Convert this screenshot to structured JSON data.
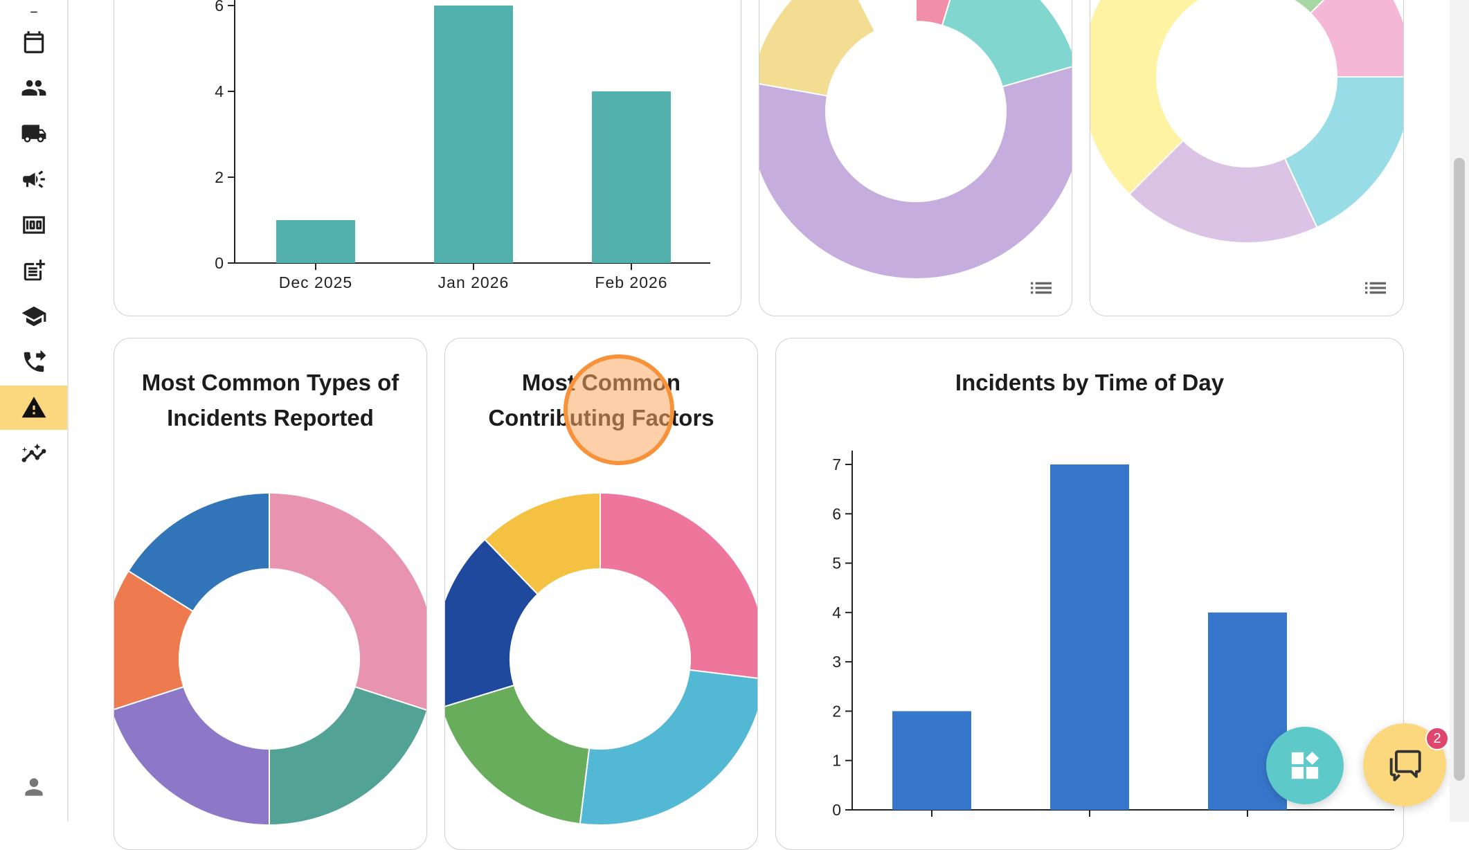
{
  "sidebar": {
    "items": [
      {
        "icon": "calendar-icon"
      },
      {
        "icon": "people-icon"
      },
      {
        "icon": "truck-icon"
      },
      {
        "icon": "megaphone-icon"
      },
      {
        "icon": "money-icon"
      },
      {
        "icon": "note-add-icon"
      },
      {
        "icon": "graduation-cap-icon"
      },
      {
        "icon": "phone-forward-icon"
      },
      {
        "icon": "warning-icon",
        "active": true
      },
      {
        "icon": "insights-icon"
      }
    ],
    "footer_icon": "user-icon",
    "active_color": "#fbd77e"
  },
  "cards": {
    "incidents_by_month": {
      "chart_data": {
        "type": "bar",
        "categories": [
          "Dec 2025",
          "Jan 2026",
          "Feb 2026"
        ],
        "values": [
          1,
          6,
          4
        ],
        "yticks": [
          0,
          2,
          4,
          6
        ],
        "ylim": [
          0,
          6
        ],
        "color": "#52b1ad"
      }
    },
    "donut_top_middle": {
      "chart_data": {
        "type": "pie",
        "donut": true,
        "slices": [
          {
            "color": "#f08fa7"
          },
          {
            "color": "#81d6cf"
          },
          {
            "color": "#c5aede"
          },
          {
            "color": "#f3dd92"
          }
        ]
      }
    },
    "donut_top_right": {
      "chart_data": {
        "type": "pie",
        "donut": true,
        "slices": [
          {
            "color": "#f4b7d6"
          },
          {
            "color": "#98dce6"
          },
          {
            "color": "#dbc3e6"
          },
          {
            "color": "#fdf3a2"
          },
          {
            "color": "#a7d7a3"
          }
        ]
      }
    },
    "incident_types": {
      "title": "Most Common Types of\nIncidents Reported",
      "chart_data": {
        "type": "pie",
        "donut": true,
        "slices": [
          {
            "color": "#e893af"
          },
          {
            "color": "#52a396"
          },
          {
            "color": "#8d78c8"
          },
          {
            "color": "#ee7b50"
          },
          {
            "color": "#3174b8"
          }
        ]
      }
    },
    "contributing_factors": {
      "title": "Most Common\nContributing Factors",
      "chart_data": {
        "type": "pie",
        "donut": true,
        "slices": [
          {
            "color": "#ee769d"
          },
          {
            "color": "#52b8d3"
          },
          {
            "color": "#67ad5c"
          },
          {
            "color": "#1e499d"
          },
          {
            "color": "#f4c142"
          }
        ]
      }
    },
    "time_of_day": {
      "title": "Incidents by Time of Day",
      "chart_data": {
        "type": "bar",
        "categories": [
          "",
          "",
          ""
        ],
        "values": [
          2,
          7,
          4
        ],
        "yticks": [
          0,
          1,
          2,
          3,
          4,
          5,
          6,
          7
        ],
        "ylim": [
          0,
          7
        ],
        "color": "#3777cb"
      }
    }
  },
  "fabs": {
    "apps": {
      "icon": "apps-icon",
      "color": "#5ec9c9"
    },
    "chat": {
      "icon": "chat-icon",
      "color": "#fbd77e",
      "badge": "2"
    }
  }
}
